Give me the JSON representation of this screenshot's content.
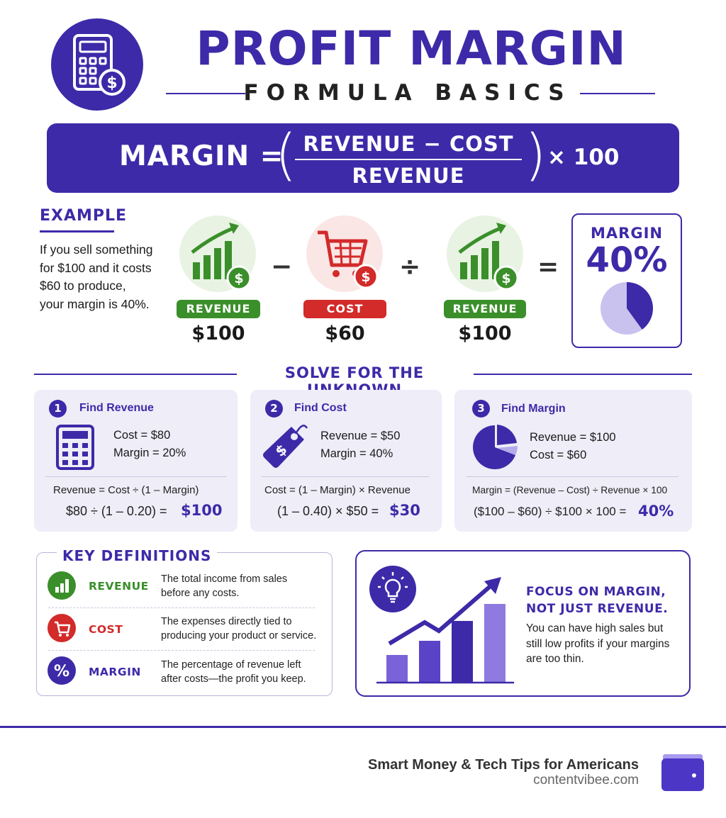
{
  "header": {
    "title": "PROFIT MARGIN",
    "subtitle": "FORMULA BASICS",
    "logo_icon": "calculator-dollar-icon"
  },
  "formula": {
    "label": "MARGIN =",
    "numerator": "REVENUE − COST",
    "denominator": "REVENUE",
    "multiplier": "× 100"
  },
  "example": {
    "heading": "EXAMPLE",
    "text": "If you sell something for $100 and it costs $60 to produce, your margin is 40%.",
    "items": [
      {
        "label": "REVENUE",
        "amount": "$100",
        "icon": "growth-chart-dollar-icon"
      },
      {
        "label": "COST",
        "amount": "$60",
        "icon": "shopping-cart-dollar-icon"
      },
      {
        "label": "REVENUE",
        "amount": "$100",
        "icon": "growth-chart-dollar-icon"
      }
    ],
    "operators": [
      "−",
      "÷",
      "="
    ],
    "result_label": "MARGIN",
    "result_value": "40%",
    "result_fraction": 0.4
  },
  "solve": {
    "title": "SOLVE FOR THE UNKNOWN",
    "cards": [
      {
        "number": "1",
        "title": "Find Revenue",
        "icon": "calculator-icon",
        "given": [
          "Cost = $80",
          "Margin = 20%"
        ],
        "formula": "Revenue = Cost ÷ (1 – Margin)",
        "calc": "$80  ÷  (1 – 0.20)  =",
        "result": "$100"
      },
      {
        "number": "2",
        "title": "Find Cost",
        "icon": "price-tag-icon",
        "given": [
          "Revenue = $50",
          "Margin = 40%"
        ],
        "formula": "Cost = (1 – Margin) × Revenue",
        "calc": "(1 – 0.40)  ×  $50  =",
        "result": "$30"
      },
      {
        "number": "3",
        "title": "Find Margin",
        "icon": "pie-chart-icon",
        "given": [
          "Revenue = $100",
          "Cost = $60"
        ],
        "formula": "Margin = (Revenue – Cost) ÷ Revenue × 100",
        "calc": "($100 – $60)  ÷  $100  ×  100  =",
        "result": "40%"
      }
    ]
  },
  "definitions": {
    "title": "KEY DEFINITIONS",
    "items": [
      {
        "term": "REVENUE",
        "desc": "The total income from sales before any costs.",
        "color": "#3a8f2a",
        "icon": "bar-chart-icon"
      },
      {
        "term": "COST",
        "desc": "The expenses directly tied to producing your product or service.",
        "color": "#d32a2a",
        "icon": "cart-icon"
      },
      {
        "term": "MARGIN",
        "desc": "The percentage of revenue left after costs—the profit you keep.",
        "color": "#3d2aa8",
        "icon": "percent-icon"
      }
    ]
  },
  "focus": {
    "heading": "FOCUS ON MARGIN, NOT JUST REVENUE.",
    "text": "You can have high sales but still low profits if your margins are too thin.",
    "icon": "lightbulb-icon"
  },
  "footer": {
    "tagline": "Smart Money & Tech Tips for Americans",
    "url": "contentvibee.com",
    "icon": "wallet-icon"
  },
  "colors": {
    "primary": "#3d2aa8",
    "green": "#3a8f2a",
    "red": "#d32a2a",
    "lavender": "#eeedf8"
  }
}
